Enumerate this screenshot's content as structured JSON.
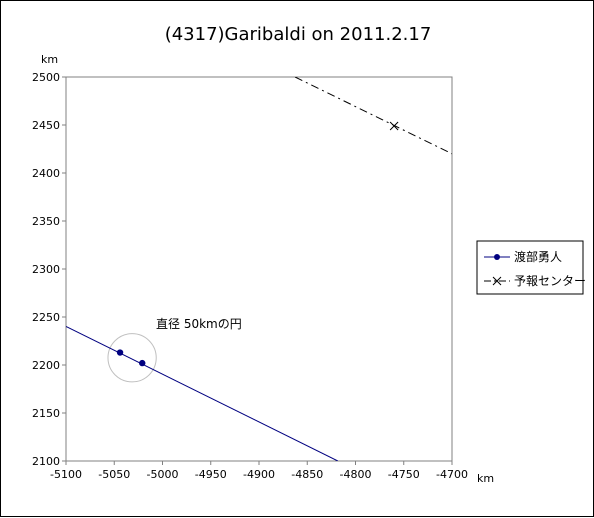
{
  "chart_data": {
    "type": "line",
    "title": "(4317)Garibaldi on 2011.2.17",
    "xlabel": "km",
    "ylabel": "km",
    "xlim": [
      -5100,
      -4700
    ],
    "ylim": [
      2100,
      2500
    ],
    "x_ticks": [
      "-5100",
      "-5050",
      "-5000",
      "-4950",
      "-4900",
      "-4850",
      "-4800",
      "-4750",
      "-4700"
    ],
    "y_ticks": [
      "2500",
      "2450",
      "2400",
      "2350",
      "2300",
      "2250",
      "2200",
      "2150",
      "2100"
    ],
    "grid": false,
    "legend_position": "right",
    "series": [
      {
        "name": "渡部勇人",
        "color": "#000080",
        "marker": "dot",
        "line_style": "solid",
        "line": [
          [
            -5100,
            2240.2
          ],
          [
            -4818.3,
            2100
          ]
        ],
        "points": [
          [
            -5044,
            2213
          ],
          [
            -5021,
            2202
          ]
        ]
      },
      {
        "name": "予報センター",
        "color": "#000000",
        "marker": "x",
        "line_style": "dashdot",
        "line": [
          [
            -4862.6,
            2500
          ],
          [
            -4700,
            2420
          ]
        ],
        "points": [
          [
            -4760,
            2449
          ]
        ]
      }
    ],
    "annotations": [
      {
        "text": "直径 50kmの円",
        "x": -5005,
        "y": 2239
      }
    ],
    "circle": {
      "center": [
        -5031.5,
        2207.5
      ],
      "diameter": 50,
      "color": "#c0c0c0"
    }
  }
}
